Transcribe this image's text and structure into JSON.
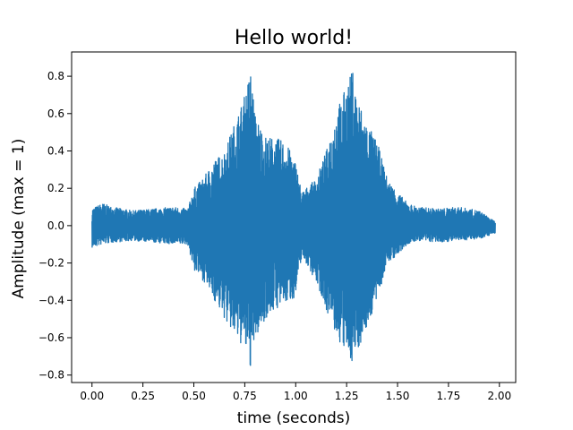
{
  "chart_data": {
    "type": "line",
    "title": "Hello world!",
    "xlabel": "time (seconds)",
    "ylabel": "Amplitude (max = 1)",
    "xlim": [
      -0.1,
      2.08
    ],
    "ylim": [
      -0.84,
      0.93
    ],
    "x_ticks": [
      0.0,
      0.25,
      0.5,
      0.75,
      1.0,
      1.25,
      1.5,
      1.75,
      2.0
    ],
    "x_tick_labels": [
      "0.00",
      "0.25",
      "0.50",
      "0.75",
      "1.00",
      "1.25",
      "1.50",
      "1.75",
      "2.00"
    ],
    "y_ticks": [
      -0.8,
      -0.6,
      -0.4,
      -0.2,
      0.0,
      0.2,
      0.4,
      0.6,
      0.8
    ],
    "y_tick_labels": [
      "−0.8",
      "−0.6",
      "−0.4",
      "−0.2",
      "0.0",
      "0.2",
      "0.4",
      "0.6",
      "0.8"
    ],
    "grid": false,
    "series_color": "#1f77b4",
    "envelope": {
      "t": [
        0.0,
        0.05,
        0.1,
        0.2,
        0.3,
        0.4,
        0.47,
        0.5,
        0.55,
        0.6,
        0.65,
        0.7,
        0.75,
        0.78,
        0.8,
        0.85,
        0.9,
        0.95,
        1.0,
        1.03,
        1.05,
        1.1,
        1.15,
        1.2,
        1.25,
        1.28,
        1.3,
        1.35,
        1.4,
        1.45,
        1.5,
        1.55,
        1.6,
        1.7,
        1.8,
        1.9,
        1.98
      ],
      "max": [
        0.09,
        0.12,
        0.1,
        0.08,
        0.09,
        0.1,
        0.09,
        0.2,
        0.26,
        0.35,
        0.4,
        0.55,
        0.7,
        0.85,
        0.6,
        0.48,
        0.47,
        0.45,
        0.34,
        0.18,
        0.2,
        0.25,
        0.4,
        0.62,
        0.75,
        0.84,
        0.7,
        0.55,
        0.45,
        0.25,
        0.18,
        0.12,
        0.1,
        0.09,
        0.1,
        0.08,
        0.02
      ],
      "min": [
        -0.12,
        -0.1,
        -0.09,
        -0.08,
        -0.09,
        -0.1,
        -0.1,
        -0.24,
        -0.3,
        -0.4,
        -0.5,
        -0.6,
        -0.66,
        -0.77,
        -0.62,
        -0.5,
        -0.45,
        -0.42,
        -0.38,
        -0.16,
        -0.2,
        -0.3,
        -0.45,
        -0.6,
        -0.7,
        -0.73,
        -0.68,
        -0.55,
        -0.4,
        -0.2,
        -0.16,
        -0.1,
        -0.08,
        -0.09,
        -0.08,
        -0.07,
        -0.04
      ]
    }
  }
}
